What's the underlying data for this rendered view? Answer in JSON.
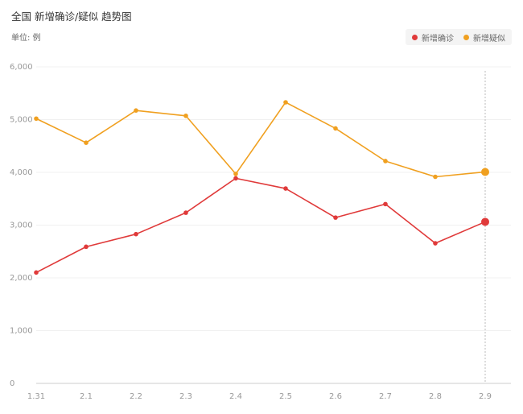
{
  "header": {
    "title": "全国 新增确诊/疑似 趋势图",
    "unit": "单位: 例"
  },
  "chart_data": {
    "type": "line",
    "categories": [
      "1.31",
      "2.1",
      "2.2",
      "2.3",
      "2.4",
      "2.5",
      "2.6",
      "2.7",
      "2.8",
      "2.9"
    ],
    "series": [
      {
        "name": "新增确诊",
        "color": "#e03a3a",
        "values": [
          2102,
          2590,
          2829,
          3235,
          3887,
          3694,
          3143,
          3399,
          2656,
          3062
        ]
      },
      {
        "name": "新增疑似",
        "color": "#f0a020",
        "values": [
          5019,
          4562,
          5173,
          5072,
          3971,
          5328,
          4833,
          4214,
          3916,
          4008
        ]
      }
    ],
    "ylim": [
      0,
      6000
    ],
    "yticks": [
      "0",
      "1,000",
      "2,000",
      "3,000",
      "4,000",
      "5,000",
      "6,000"
    ],
    "grid": true,
    "legend_position": "top-right",
    "highlight_index": 9
  }
}
